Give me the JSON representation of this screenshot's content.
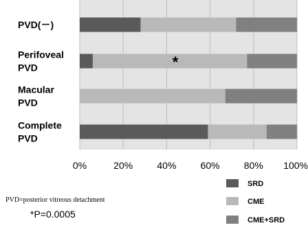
{
  "chart_data": {
    "type": "bar",
    "orientation": "horizontal",
    "stacked": true,
    "categories": [
      [
        "PVD(－)"
      ],
      [
        "Perifoveal",
        "PVD"
      ],
      [
        "Macular",
        "PVD"
      ],
      [
        "Complete",
        "PVD"
      ]
    ],
    "series": [
      {
        "name": "SRD",
        "values": [
          28,
          6,
          0,
          59
        ],
        "color": "#5a5a5a"
      },
      {
        "name": "CME",
        "values": [
          44,
          71,
          67,
          27
        ],
        "color": "#b9b9b9"
      },
      {
        "name": "CME+SRD",
        "values": [
          28,
          23,
          33,
          14
        ],
        "color": "#808080"
      }
    ],
    "xlim": [
      0,
      100
    ],
    "xticks": [
      "0%",
      "20%",
      "40%",
      "60%",
      "80%",
      "100%"
    ],
    "annotation": {
      "text": "*",
      "category_index": 1,
      "x": 44
    },
    "grid": true,
    "legend": "bottom-right"
  },
  "footnote": "PVD=posterior vitreous detachment",
  "pvalue": "*P=0.0005"
}
